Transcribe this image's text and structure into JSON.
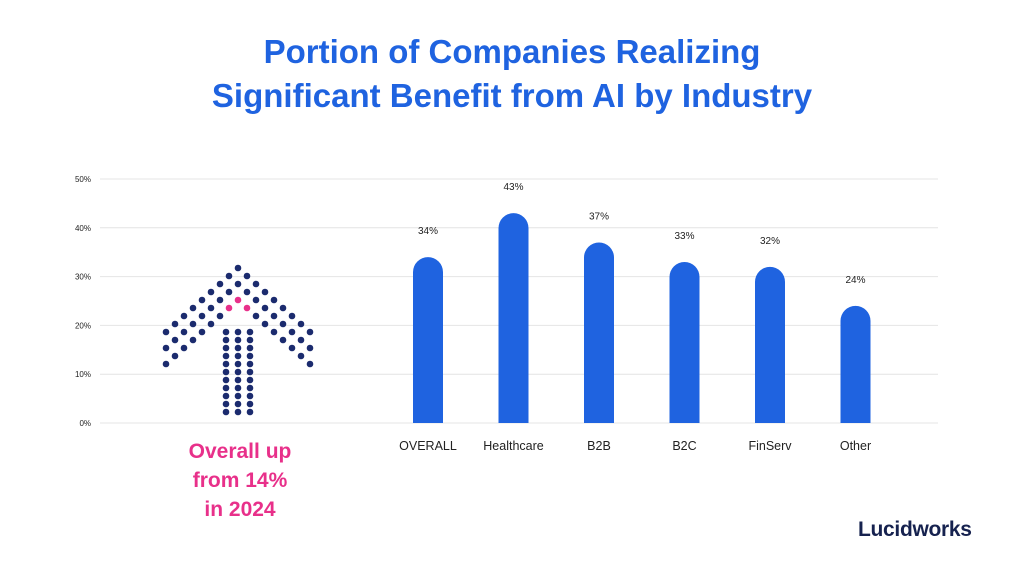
{
  "header": {
    "title_line1": "Portion of Companies Realizing",
    "title_line2": "Significant Benefit from AI by Industry"
  },
  "chart_data": {
    "type": "bar",
    "title": "Portion of Companies Realizing Significant Benefit from AI by Industry",
    "categories": [
      "OVERALL",
      "Healthcare",
      "B2B",
      "B2C",
      "FinServ",
      "Other"
    ],
    "values": [
      34,
      43,
      37,
      33,
      32,
      24
    ],
    "data_labels": [
      "34%",
      "43%",
      "37%",
      "33%",
      "32%",
      "24%"
    ],
    "y_ticks": [
      "0%",
      "10%",
      "20%",
      "30%",
      "40%",
      "50%"
    ],
    "ylim": [
      0,
      50
    ],
    "unit": "%",
    "grid": true,
    "xlabel": "",
    "ylabel": "",
    "bar_color": "#1f63e0"
  },
  "callout": {
    "line1": "Overall up",
    "line2": "from 14%",
    "line3": "in 2024",
    "color": "#e8308a",
    "icon": "dotted-up-arrow-icon"
  },
  "brand": {
    "logo_text": "Lucidworks"
  }
}
